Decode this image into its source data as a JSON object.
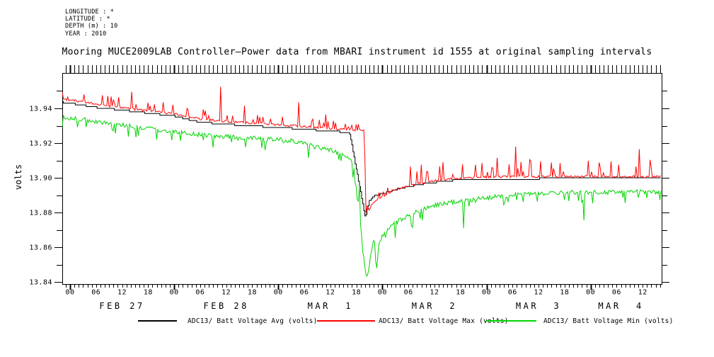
{
  "header": {
    "lines": [
      "LONGITUDE : *",
      "LATITUDE : *",
      "DEPTH (m) : 10",
      "YEAR : 2010"
    ]
  },
  "title": "Mooring MUCE2009LAB Controller–Power data from MBARI instrument id 1555 at original sampling intervals",
  "y_axis_title": "volts",
  "legend": {
    "items": [
      {
        "label": "ADC13/ Batt Voltage Avg (volts)",
        "color": "#000000"
      },
      {
        "label": "ADC13/ Batt Voltage Max (volts)",
        "color": "#ff0000"
      },
      {
        "label": "ADC13/ Batt Voltage Min (volts)",
        "color": "#00d400"
      }
    ]
  },
  "chart_data": {
    "type": "line",
    "title": "Mooring MUCE2009LAB Controller–Power data from MBARI instrument id 1555 at original sampling intervals",
    "xlabel": "",
    "ylabel": "volts",
    "ylim": [
      13.8388,
      13.9604
    ],
    "grid": false,
    "legend_position": "bottom",
    "x_axis": {
      "units": "hours since FEB 27 2010 00:00",
      "t_min": -1.79,
      "t_max": 136.37,
      "minor_tick_hours": 1,
      "midnight_ticks": [
        0,
        24,
        48,
        72,
        96,
        120
      ],
      "hour_ticks": [
        {
          "t": 0,
          "label": "00"
        },
        {
          "t": 6,
          "label": "06"
        },
        {
          "t": 12,
          "label": "12"
        },
        {
          "t": 18,
          "label": "18"
        },
        {
          "t": 24,
          "label": "00"
        },
        {
          "t": 30,
          "label": "06"
        },
        {
          "t": 36,
          "label": "12"
        },
        {
          "t": 42,
          "label": "18"
        },
        {
          "t": 48,
          "label": "00"
        },
        {
          "t": 54,
          "label": "06"
        },
        {
          "t": 60,
          "label": "12"
        },
        {
          "t": 66,
          "label": "18"
        },
        {
          "t": 72,
          "label": "00"
        },
        {
          "t": 78,
          "label": "06"
        },
        {
          "t": 84,
          "label": "12"
        },
        {
          "t": 90,
          "label": "18"
        },
        {
          "t": 96,
          "label": "00"
        },
        {
          "t": 102,
          "label": "06"
        },
        {
          "t": 108,
          "label": "12"
        },
        {
          "t": 114,
          "label": "18"
        },
        {
          "t": 120,
          "label": "00"
        },
        {
          "t": 126,
          "label": "06"
        },
        {
          "t": 132,
          "label": "12"
        }
      ],
      "date_labels": [
        {
          "text": "FEB 27",
          "t_center": 12
        },
        {
          "text": "FEB 28",
          "t_center": 36
        },
        {
          "text": "MAR  1",
          "t_center": 60
        },
        {
          "text": "MAR  2",
          "t_center": 84
        },
        {
          "text": "MAR  3",
          "t_center": 108
        },
        {
          "text": "MAR  4",
          "t_center": 127
        }
      ]
    },
    "y_axis": {
      "major_ticks": [
        {
          "v": 13.84,
          "label": "13.84"
        },
        {
          "v": 13.86,
          "label": "13.86"
        },
        {
          "v": 13.88,
          "label": "13.88"
        },
        {
          "v": 13.9,
          "label": "13.90"
        },
        {
          "v": 13.92,
          "label": "13.92"
        },
        {
          "v": 13.94,
          "label": "13.94"
        }
      ],
      "minor_ticks": [
        13.85,
        13.87,
        13.89,
        13.91,
        13.93,
        13.95
      ]
    },
    "event": {
      "description": "sharp voltage drop",
      "t_bottom": 68.0,
      "date": "MAR 1 ~20:00",
      "avg_bottom": 13.8775,
      "min_bottom": 13.8425
    },
    "series": [
      {
        "name": "ADC13/ Batt Voltage Avg (volts)",
        "color": "#000000",
        "style": "step",
        "quantize": 0.001,
        "keypoints": [
          [
            -1.79,
            13.9435
          ],
          [
            0,
            13.943
          ],
          [
            6,
            13.9405
          ],
          [
            12,
            13.939
          ],
          [
            18,
            13.9372
          ],
          [
            24,
            13.9355
          ],
          [
            30,
            13.932
          ],
          [
            36,
            13.9308
          ],
          [
            42,
            13.9298
          ],
          [
            48,
            13.929
          ],
          [
            54,
            13.928
          ],
          [
            60,
            13.9268
          ],
          [
            64.4,
            13.9262
          ],
          [
            68,
            13.8775
          ],
          [
            69,
            13.887
          ],
          [
            70.3,
            13.8898
          ],
          [
            72.8,
            13.8914
          ],
          [
            76,
            13.894
          ],
          [
            80,
            13.896
          ],
          [
            84,
            13.8974
          ],
          [
            88,
            13.8985
          ],
          [
            92,
            13.8991
          ],
          [
            96,
            13.8993
          ],
          [
            104,
            13.8994
          ],
          [
            112,
            13.8996
          ],
          [
            136.37,
            13.8997
          ]
        ],
        "noise": {
          "jitter": 0,
          "spike_p": 0,
          "spike_dir": 1,
          "amp_env": [
            [
              -1.79,
              0
            ],
            [
              136.37,
              0
            ]
          ]
        },
        "forced": []
      },
      {
        "name": "ADC13/ Batt Voltage Max (volts)",
        "color": "#ff0000",
        "style": "line",
        "keypoints": [
          [
            -1.79,
            13.9448
          ],
          [
            0,
            13.9442
          ],
          [
            6,
            13.9418
          ],
          [
            12,
            13.9398
          ],
          [
            18,
            13.9378
          ],
          [
            24,
            13.9362
          ],
          [
            30,
            13.9332
          ],
          [
            36,
            13.9318
          ],
          [
            42,
            13.9308
          ],
          [
            48,
            13.9299
          ],
          [
            54,
            13.9288
          ],
          [
            60,
            13.9277
          ],
          [
            67.9,
            13.9267
          ],
          [
            68.1,
            13.8768
          ],
          [
            68.4,
            13.8832
          ],
          [
            69,
            13.8808
          ],
          [
            69.8,
            13.8852
          ],
          [
            70.8,
            13.8865
          ],
          [
            72,
            13.8885
          ],
          [
            74,
            13.8912
          ],
          [
            76,
            13.8932
          ],
          [
            80,
            13.8958
          ],
          [
            84,
            13.8976
          ],
          [
            88,
            13.8988
          ],
          [
            92,
            13.8995
          ],
          [
            96,
            13.8998
          ],
          [
            100,
            13.9
          ],
          [
            136.37,
            13.9
          ]
        ],
        "noise": {
          "jitter": 0.0013,
          "spike_p": 0.11,
          "spike_dir": 1,
          "amp_env": [
            [
              -1.79,
              0.0042
            ],
            [
              48,
              0.0036
            ],
            [
              64,
              0.0028
            ],
            [
              68.2,
              0.0014
            ],
            [
              72,
              0.0035
            ],
            [
              78,
              0.006
            ],
            [
              84,
              0.0075
            ],
            [
              92,
              0.008
            ],
            [
              100,
              0.009
            ],
            [
              110,
              0.0085
            ],
            [
              120,
              0.0085
            ],
            [
              130,
              0.008
            ],
            [
              136.37,
              0.008
            ]
          ]
        },
        "forced": [
          [
            3.2,
            13.948
          ],
          [
            9.5,
            13.9468
          ],
          [
            14.2,
            13.9495
          ],
          [
            21.5,
            13.9435
          ],
          [
            34.6,
            13.9525
          ],
          [
            40.2,
            13.9415
          ],
          [
            52.6,
            13.9435
          ],
          [
            59,
            13.9365
          ],
          [
            78.5,
            13.9065
          ],
          [
            81,
            13.9075
          ],
          [
            86,
            13.909
          ],
          [
            95,
            13.9085
          ],
          [
            98.5,
            13.9115
          ],
          [
            102.6,
            13.918
          ],
          [
            106,
            13.9105
          ],
          [
            108.5,
            13.9095
          ],
          [
            113,
            13.9085
          ],
          [
            119.5,
            13.9098
          ],
          [
            122,
            13.9088
          ],
          [
            126.5,
            13.9075
          ],
          [
            131.1,
            13.9165
          ],
          [
            134,
            13.906
          ]
        ]
      },
      {
        "name": "ADC13/ Batt Voltage Min (volts)",
        "color": "#00d400",
        "style": "line",
        "keypoints": [
          [
            -1.79,
            13.9368
          ],
          [
            0,
            13.9358
          ],
          [
            6,
            13.9338
          ],
          [
            12,
            13.9318
          ],
          [
            18,
            13.9297
          ],
          [
            24,
            13.9278
          ],
          [
            30,
            13.9262
          ],
          [
            36,
            13.925
          ],
          [
            42,
            13.9242
          ],
          [
            48,
            13.9235
          ],
          [
            52,
            13.9222
          ],
          [
            57,
            13.9188
          ],
          [
            61,
            13.9165
          ],
          [
            63.8,
            13.9142
          ],
          [
            64.9,
            13.9102
          ],
          [
            66.5,
            13.8885
          ],
          [
            67.5,
            13.8595
          ],
          [
            68.35,
            13.8435
          ],
          [
            68.9,
            13.8478
          ],
          [
            69.4,
            13.8588
          ],
          [
            70.15,
            13.8658
          ],
          [
            70.6,
            13.8478
          ],
          [
            71.3,
            13.8645
          ],
          [
            72,
            13.868
          ],
          [
            73,
            13.8715
          ],
          [
            74.5,
            13.8745
          ],
          [
            76,
            13.8768
          ],
          [
            78,
            13.8795
          ],
          [
            80,
            13.882
          ],
          [
            83,
            13.8848
          ],
          [
            86,
            13.8865
          ],
          [
            90,
            13.888
          ],
          [
            94,
            13.8892
          ],
          [
            98,
            13.8905
          ],
          [
            104,
            13.8915
          ],
          [
            110,
            13.8925
          ],
          [
            118,
            13.893
          ],
          [
            136.37,
            13.8932
          ]
        ],
        "noise": {
          "jitter": 0.0026,
          "spike_p": 0.09,
          "spike_dir": -1,
          "amp_env": [
            [
              -1.79,
              0.004
            ],
            [
              48,
              0.0045
            ],
            [
              63,
              0.004
            ],
            [
              66,
              0.002
            ],
            [
              69,
              0.001
            ],
            [
              71,
              0.002
            ],
            [
              72,
              0.004
            ],
            [
              80,
              0.0045
            ],
            [
              96,
              0.0042
            ],
            [
              120,
              0.0042
            ],
            [
              136.37,
              0.0045
            ]
          ]
        },
        "forced": [
          [
            10.5,
            13.9255
          ],
          [
            20,
            13.922
          ],
          [
            33,
            13.9175
          ],
          [
            45,
            13.916
          ],
          [
            55,
            13.9115
          ],
          [
            65.5,
            13.9055
          ],
          [
            66.2,
            13.8875
          ],
          [
            66.6,
            13.8955
          ],
          [
            67.2,
            13.8665
          ],
          [
            75,
            13.8655
          ],
          [
            79,
            13.8715
          ],
          [
            90.6,
            13.9015
          ],
          [
            90.75,
            13.871
          ],
          [
            100,
            13.8845
          ],
          [
            118.5,
            13.8755
          ],
          [
            128,
            13.8855
          ],
          [
            135.9,
            13.8872
          ]
        ]
      }
    ]
  }
}
